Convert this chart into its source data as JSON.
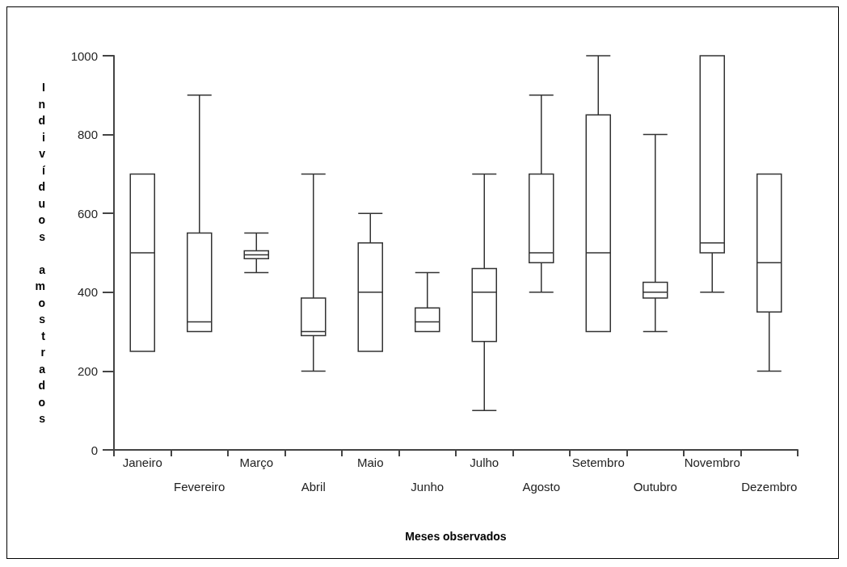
{
  "chart_data": {
    "type": "box",
    "xlabel": "Meses observados",
    "ylabel": "Indivíduos amostrados",
    "categories": [
      "Janeiro",
      "Fevereiro",
      "Março",
      "Abril",
      "Maio",
      "Junho",
      "Julho",
      "Agosto",
      "Setembro",
      "Outubro",
      "Novembro",
      "Dezembro"
    ],
    "boxes": [
      {
        "low": 250,
        "q1": 250,
        "median": 500,
        "q3": 700,
        "high": 700
      },
      {
        "low": 300,
        "q1": 300,
        "median": 325,
        "q3": 550,
        "high": 900
      },
      {
        "low": 450,
        "q1": 485,
        "median": 495,
        "q3": 505,
        "high": 550
      },
      {
        "low": 200,
        "q1": 290,
        "median": 300,
        "q3": 385,
        "high": 700
      },
      {
        "low": 250,
        "q1": 250,
        "median": 400,
        "q3": 525,
        "high": 600
      },
      {
        "low": 300,
        "q1": 300,
        "median": 325,
        "q3": 360,
        "high": 450
      },
      {
        "low": 100,
        "q1": 275,
        "median": 400,
        "q3": 460,
        "high": 700
      },
      {
        "low": 400,
        "q1": 475,
        "median": 500,
        "q3": 700,
        "high": 900
      },
      {
        "low": 300,
        "q1": 300,
        "median": 500,
        "q3": 850,
        "high": 1000
      },
      {
        "low": 300,
        "q1": 385,
        "median": 400,
        "q3": 425,
        "high": 800
      },
      {
        "low": 400,
        "q1": 500,
        "median": 525,
        "q3": 1000,
        "high": 1000
      },
      {
        "low": 200,
        "q1": 350,
        "median": 475,
        "q3": 700,
        "high": 700
      }
    ],
    "color": "#333333",
    "ylim": [
      0,
      1000
    ],
    "yticks": [
      0,
      200,
      400,
      600,
      800,
      1000
    ],
    "grid": false
  }
}
